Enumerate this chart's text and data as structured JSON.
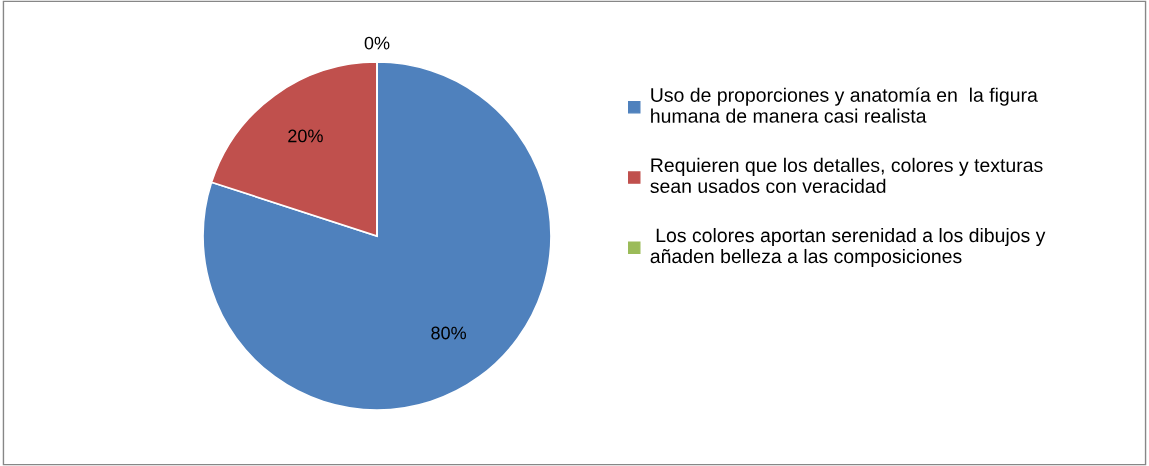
{
  "chart_data": {
    "type": "pie",
    "categories": [
      "Uso de proporciones y anatomía en  la figura\nhumana de manera casi realista",
      "Requieren que los detalles, colores y texturas\nsean usados con veracidad",
      " Los colores aportan serenidad a los dibujos y\nañaden belleza a las composiciones"
    ],
    "values": [
      80,
      20,
      0
    ],
    "colors": [
      "#4f81bd",
      "#c0504d",
      "#9bbb59"
    ],
    "value_labels": [
      "80%",
      "20%",
      "0%"
    ],
    "legend": "right"
  }
}
